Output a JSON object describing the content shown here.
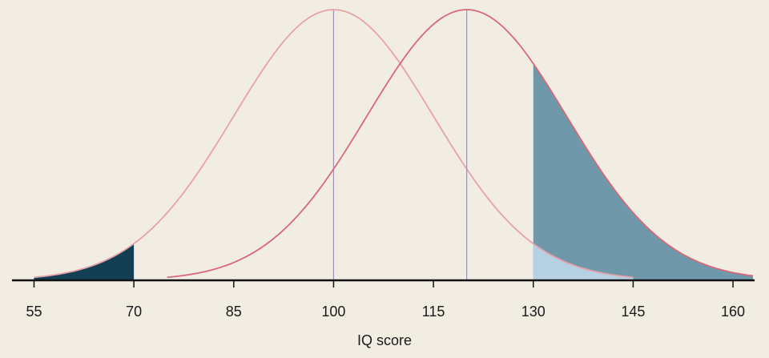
{
  "chart_data": {
    "type": "density",
    "xlabel": "IQ score",
    "xlim": [
      53.5,
      163
    ],
    "xticks": [
      55,
      70,
      85,
      100,
      115,
      130,
      145,
      160
    ],
    "mean_lines": true,
    "series": [
      {
        "mean": 100,
        "sd": 15,
        "color": "#e6a2aa",
        "shade_below": 70,
        "shade_below_color": "#133f55",
        "shade_above": 130,
        "shade_above_color": "#b6d1e2"
      },
      {
        "mean": 120,
        "sd": 15,
        "color": "#d9677a",
        "shade_above": 130,
        "shade_above_color": "#6f98ab"
      }
    ]
  }
}
